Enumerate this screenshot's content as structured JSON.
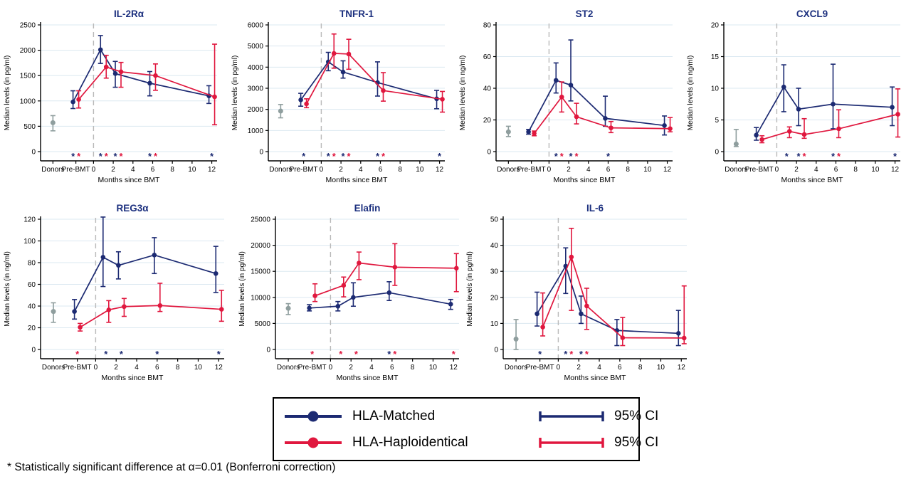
{
  "colors": {
    "matched": "#1c2a72",
    "haplo": "#e0173e",
    "donors": "#8f9e9e",
    "grid": "#dbe8f1",
    "axis": "#000000",
    "dashed_line": "#b9b9b9",
    "title": "#1b2f7e"
  },
  "legend": {
    "series": [
      {
        "label": "HLA-Matched",
        "color_key": "matched"
      },
      {
        "label": "HLA-Haploidentical",
        "color_key": "haplo"
      }
    ],
    "ci_label": "95% CI"
  },
  "footnote": "* Statistically significant difference at α=0.01 (Bonferroni correction)",
  "x_axis": {
    "tick_labels": [
      "Donors",
      "Pre-BMT",
      "0",
      "2",
      "4",
      "6",
      "8",
      "10",
      "12"
    ],
    "xlabel": "Months since BMT"
  },
  "chart_data": [
    {
      "id": "il2ra",
      "type": "line+errorbar",
      "title": "IL-2Rα",
      "ylabel": "Median levels (in pg/ml)",
      "xlabel": "Months since BMT",
      "ylim": [
        0,
        2500
      ],
      "yticks": [
        0,
        500,
        1000,
        1500,
        2000,
        2500
      ],
      "month_ticks": [
        0,
        2,
        4,
        6,
        8,
        10,
        12
      ],
      "x": [
        "Pre-BMT",
        1,
        2.5,
        6,
        12
      ],
      "donors": {
        "value": 570,
        "ci": [
          410,
          710
        ]
      },
      "series": [
        {
          "name": "HLA-Matched",
          "color_key": "matched",
          "values": [
            980,
            2010,
            1540,
            1350,
            1100
          ],
          "ci_low": [
            850,
            1740,
            1270,
            1100,
            950
          ],
          "ci_high": [
            1200,
            2290,
            1780,
            1580,
            1300
          ]
        },
        {
          "name": "HLA-Haploidentical",
          "color_key": "haplo",
          "values": [
            1030,
            1670,
            1575,
            1500,
            1080
          ],
          "ci_low": [
            860,
            1450,
            1270,
            1210,
            530
          ],
          "ci_high": [
            1200,
            1900,
            1760,
            1730,
            2120
          ]
        }
      ],
      "stars": [
        {
          "x": "Pre-BMT",
          "colors": [
            "matched",
            "haplo"
          ]
        },
        {
          "x": 1,
          "colors": [
            "matched",
            "haplo"
          ]
        },
        {
          "x": 2.5,
          "colors": [
            "matched",
            "haplo"
          ]
        },
        {
          "x": 6,
          "colors": [
            "matched",
            "haplo"
          ]
        },
        {
          "x": 12,
          "colors": [
            "matched"
          ]
        }
      ]
    },
    {
      "id": "tnfr1",
      "type": "line+errorbar",
      "title": "TNFR-1",
      "ylabel": "Median levels (in pg/ml)",
      "xlabel": "Months since BMT",
      "ylim": [
        0,
        6000
      ],
      "yticks": [
        0,
        1000,
        2000,
        3000,
        4000,
        5000,
        6000
      ],
      "month_ticks": [
        0,
        2,
        4,
        6,
        8,
        10,
        12
      ],
      "x": [
        "Pre-BMT",
        1,
        2.5,
        6,
        12
      ],
      "donors": {
        "value": 1920,
        "ci": [
          1600,
          2230
        ]
      },
      "series": [
        {
          "name": "HLA-Matched",
          "color_key": "matched",
          "values": [
            2450,
            4250,
            3770,
            3270,
            2500
          ],
          "ci_low": [
            2150,
            3830,
            3480,
            2630,
            2030
          ],
          "ci_high": [
            2760,
            4700,
            4300,
            4250,
            2900
          ]
        },
        {
          "name": "HLA-Haploidentical",
          "color_key": "haplo",
          "values": [
            2260,
            4650,
            4620,
            2890,
            2480
          ],
          "ci_low": [
            2080,
            3950,
            3900,
            2390,
            1870
          ],
          "ci_high": [
            2500,
            5570,
            5320,
            3740,
            2850
          ]
        }
      ],
      "stars": [
        {
          "x": "Pre-BMT",
          "colors": [
            "matched"
          ]
        },
        {
          "x": 1,
          "colors": [
            "matched",
            "haplo"
          ]
        },
        {
          "x": 2.5,
          "colors": [
            "matched",
            "haplo"
          ]
        },
        {
          "x": 6,
          "colors": [
            "matched",
            "haplo"
          ]
        },
        {
          "x": 12,
          "colors": [
            "matched"
          ]
        }
      ]
    },
    {
      "id": "st2",
      "type": "line+errorbar",
      "title": "ST2",
      "ylabel": "Median levels (in ng/ml)",
      "xlabel": "Months since BMT",
      "ylim": [
        0,
        80
      ],
      "yticks": [
        0,
        20,
        40,
        60,
        80
      ],
      "month_ticks": [
        0,
        2,
        4,
        6,
        8,
        10,
        12
      ],
      "x": [
        "Pre-BMT",
        1,
        2.5,
        6,
        12
      ],
      "donors": {
        "value": 12.5,
        "ci": [
          9.5,
          16
        ]
      },
      "series": [
        {
          "name": "HLA-Matched",
          "color_key": "matched",
          "values": [
            12.5,
            45,
            42,
            21,
            16.5
          ],
          "ci_low": [
            11,
            37,
            32,
            16,
            10.5
          ],
          "ci_high": [
            14,
            56,
            70.5,
            35,
            22.5
          ]
        },
        {
          "name": "HLA-Haploidentical",
          "color_key": "haplo",
          "values": [
            11.5,
            34.5,
            22,
            15,
            14.5
          ],
          "ci_low": [
            10,
            25,
            17.5,
            12,
            12.5
          ],
          "ci_high": [
            13,
            44,
            30.5,
            19,
            21.5
          ]
        }
      ],
      "stars": [
        {
          "x": 1,
          "colors": [
            "matched",
            "haplo"
          ]
        },
        {
          "x": 2.5,
          "colors": [
            "matched",
            "haplo"
          ]
        },
        {
          "x": 6,
          "colors": [
            "matched"
          ]
        }
      ]
    },
    {
      "id": "cxcl9",
      "type": "line+errorbar",
      "title": "CXCL9",
      "ylabel": "Median levels (in ng/ml)",
      "xlabel": "Months since BMT",
      "ylim": [
        0,
        20
      ],
      "yticks": [
        0,
        5,
        10,
        15,
        20
      ],
      "month_ticks": [
        0,
        2,
        4,
        6,
        8,
        10,
        12
      ],
      "x": [
        "Pre-BMT",
        1,
        2.5,
        6,
        12
      ],
      "donors": {
        "value": 1.2,
        "ci": [
          0.8,
          3.5
        ]
      },
      "series": [
        {
          "name": "HLA-Matched",
          "color_key": "matched",
          "values": [
            2.6,
            10.2,
            6.7,
            7.5,
            7.0
          ],
          "ci_low": [
            1.8,
            6.3,
            4.1,
            3.6,
            4.1
          ],
          "ci_high": [
            3.8,
            13.7,
            10.0,
            13.8,
            10.2
          ]
        },
        {
          "name": "HLA-Haploidentical",
          "color_key": "haplo",
          "values": [
            1.9,
            3.2,
            2.7,
            3.6,
            5.9
          ],
          "ci_low": [
            1.4,
            2.2,
            2.1,
            2.2,
            2.3
          ],
          "ci_high": [
            2.5,
            3.9,
            5.2,
            6.6,
            9.9
          ]
        }
      ],
      "stars": [
        {
          "x": 1,
          "colors": [
            "matched"
          ]
        },
        {
          "x": 2.5,
          "colors": [
            "matched",
            "haplo"
          ]
        },
        {
          "x": 6,
          "colors": [
            "matched",
            "haplo"
          ]
        },
        {
          "x": 12,
          "colors": [
            "matched"
          ]
        }
      ]
    },
    {
      "id": "reg3a",
      "type": "line+errorbar",
      "title": "REG3α",
      "ylabel": "Median levels (in ng/ml)",
      "xlabel": "Months since BMT",
      "ylim": [
        0,
        120
      ],
      "yticks": [
        0,
        20,
        40,
        60,
        80,
        100,
        120
      ],
      "month_ticks": [
        0,
        2,
        4,
        6,
        8,
        10,
        12
      ],
      "x": [
        "Pre-BMT",
        1,
        2.5,
        6,
        12
      ],
      "donors": {
        "value": 35,
        "ci": [
          25,
          43
        ]
      },
      "series": [
        {
          "name": "HLA-Matched",
          "color_key": "matched",
          "values": [
            35,
            85,
            77.5,
            87,
            70
          ],
          "ci_low": [
            28,
            58,
            65,
            70,
            52.5
          ],
          "ci_high": [
            46,
            122,
            90,
            103,
            95
          ]
        },
        {
          "name": "HLA-Haploidentical",
          "color_key": "haplo",
          "values": [
            20.5,
            36.5,
            39.5,
            40.5,
            37
          ],
          "ci_low": [
            17,
            25,
            30.5,
            35,
            26
          ],
          "ci_high": [
            24,
            45,
            47,
            61,
            54.5
          ]
        }
      ],
      "stars": [
        {
          "x": "Pre-BMT",
          "colors": [
            "haplo"
          ]
        },
        {
          "x": 1,
          "colors": [
            "matched"
          ]
        },
        {
          "x": 2.5,
          "colors": [
            "matched"
          ]
        },
        {
          "x": 6,
          "colors": [
            "matched"
          ]
        },
        {
          "x": 12,
          "colors": [
            "matched"
          ]
        }
      ]
    },
    {
      "id": "elafin",
      "type": "line+errorbar",
      "title": "Elafin",
      "ylabel": "Median levels (in pg/ml)",
      "xlabel": "Months since BMT",
      "ylim": [
        0,
        25000
      ],
      "yticks": [
        0,
        5000,
        10000,
        15000,
        20000,
        25000
      ],
      "month_ticks": [
        0,
        2,
        4,
        6,
        8,
        10,
        12
      ],
      "x": [
        "Pre-BMT",
        1,
        2.5,
        6,
        12
      ],
      "donors": {
        "value": 7900,
        "ci": [
          6700,
          8800
        ]
      },
      "series": [
        {
          "name": "HLA-Matched",
          "color_key": "matched",
          "values": [
            7950,
            8300,
            10000,
            10900,
            8700
          ],
          "ci_low": [
            7400,
            7400,
            8300,
            9400,
            7700
          ],
          "ci_high": [
            8600,
            9200,
            12800,
            13000,
            9600
          ]
        },
        {
          "name": "HLA-Haploidentical",
          "color_key": "haplo",
          "values": [
            10300,
            12300,
            16600,
            15800,
            15600
          ],
          "ci_low": [
            9200,
            10100,
            13400,
            12300,
            11100
          ],
          "ci_high": [
            12600,
            13900,
            18700,
            20300,
            18400
          ]
        }
      ],
      "stars": [
        {
          "x": "Pre-BMT",
          "colors": [
            "haplo"
          ]
        },
        {
          "x": 1,
          "colors": [
            "haplo"
          ]
        },
        {
          "x": 2.5,
          "colors": [
            "haplo"
          ]
        },
        {
          "x": 6,
          "colors": [
            "matched",
            "haplo"
          ]
        },
        {
          "x": 12,
          "colors": [
            "haplo"
          ]
        }
      ]
    },
    {
      "id": "il6",
      "type": "line+errorbar",
      "title": "IL-6",
      "ylabel": "Median levels (in pg/ml)",
      "xlabel": "Months since BMT",
      "ylim": [
        0,
        50
      ],
      "yticks": [
        0,
        10,
        20,
        30,
        40,
        50
      ],
      "month_ticks": [
        0,
        2,
        4,
        6,
        8,
        10,
        12
      ],
      "x": [
        "Pre-BMT",
        1,
        2.5,
        6,
        12
      ],
      "donors": {
        "value": 4,
        "ci": [
          0,
          11.5
        ]
      },
      "series": [
        {
          "name": "HLA-Matched",
          "color_key": "matched",
          "values": [
            13.7,
            32,
            13.7,
            7.3,
            6.2
          ],
          "ci_low": [
            9,
            21.5,
            10,
            1.5,
            1.5
          ],
          "ci_high": [
            22,
            39,
            20.5,
            11.5,
            15
          ]
        },
        {
          "name": "HLA-Haploidentical",
          "color_key": "haplo",
          "values": [
            8.6,
            35.5,
            16.7,
            4.5,
            4.4
          ],
          "ci_low": [
            5.2,
            15,
            7.7,
            1.5,
            2.2
          ],
          "ci_high": [
            21.7,
            46.5,
            23.5,
            12.3,
            24.4
          ]
        }
      ],
      "stars": [
        {
          "x": "Pre-BMT",
          "colors": [
            "matched"
          ]
        },
        {
          "x": 1,
          "colors": [
            "matched",
            "haplo"
          ]
        },
        {
          "x": 2.5,
          "colors": [
            "matched",
            "haplo"
          ]
        }
      ]
    }
  ]
}
